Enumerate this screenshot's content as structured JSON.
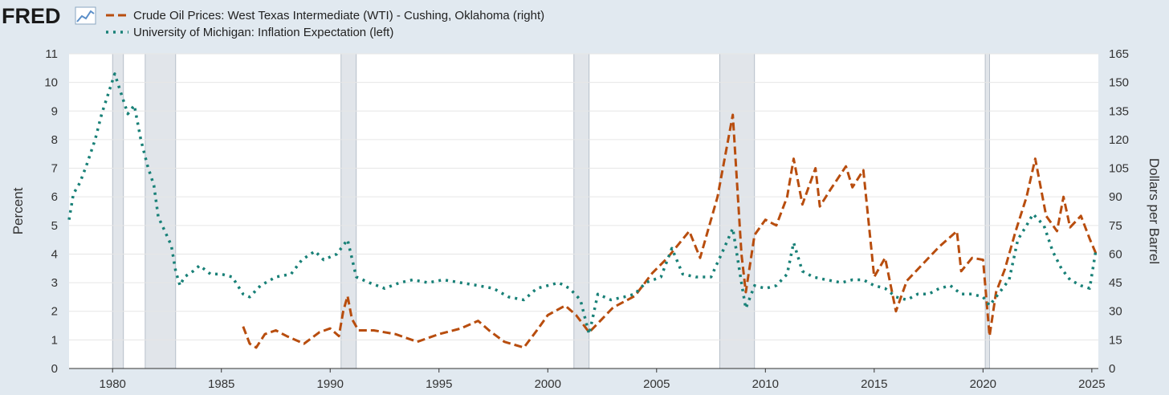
{
  "logo": {
    "text": "FRED"
  },
  "colors": {
    "background": "#e1e9f0",
    "plot_bg": "#ffffff",
    "grid": "#e6e6e6",
    "recession": "#e1e5ea",
    "oil": "#b84d0e",
    "inflation": "#188077",
    "text": "#333333"
  },
  "icons": [
    "fred-logo-chart-icon"
  ],
  "chart_data": {
    "type": "line",
    "x_range": [
      1978,
      2025.3
    ],
    "x_ticks": [
      1980,
      1985,
      1990,
      1995,
      2000,
      2005,
      2010,
      2015,
      2020,
      2025
    ],
    "left_axis": {
      "label": "Percent",
      "range": [
        0,
        11
      ],
      "ticks": [
        0,
        1,
        2,
        3,
        4,
        5,
        6,
        7,
        8,
        9,
        10,
        11
      ]
    },
    "right_axis": {
      "label": "Dollars per Barrel",
      "range": [
        0,
        165
      ],
      "ticks": [
        0,
        15,
        30,
        45,
        60,
        75,
        90,
        105,
        120,
        135,
        150,
        165
      ]
    },
    "grid": true,
    "legend": "top-left",
    "recessions": [
      [
        1980.0,
        1980.5
      ],
      [
        1981.5,
        1982.9
      ],
      [
        1990.5,
        1991.2
      ],
      [
        2001.2,
        2001.9
      ],
      [
        2007.9,
        2009.5
      ],
      [
        2020.1,
        2020.3
      ]
    ],
    "series": [
      {
        "name": "Crude Oil Prices: West Texas Intermediate (WTI) - Cushing, Oklahoma (right)",
        "axis": "right",
        "style": "dashed",
        "color": "#b84d0e",
        "points": [
          [
            1986.0,
            22
          ],
          [
            1986.3,
            13
          ],
          [
            1986.6,
            11
          ],
          [
            1987.0,
            18
          ],
          [
            1987.5,
            20
          ],
          [
            1988.0,
            17
          ],
          [
            1988.8,
            13
          ],
          [
            1989.5,
            19
          ],
          [
            1990.0,
            21
          ],
          [
            1990.4,
            17
          ],
          [
            1990.6,
            30
          ],
          [
            1990.8,
            38
          ],
          [
            1991.0,
            26
          ],
          [
            1991.3,
            20
          ],
          [
            1992.0,
            20
          ],
          [
            1993.0,
            18
          ],
          [
            1994.0,
            14
          ],
          [
            1995.0,
            18
          ],
          [
            1996.0,
            21
          ],
          [
            1996.8,
            25
          ],
          [
            1997.3,
            20
          ],
          [
            1998.0,
            14
          ],
          [
            1998.9,
            11
          ],
          [
            1999.5,
            20
          ],
          [
            2000.0,
            28
          ],
          [
            2000.8,
            33
          ],
          [
            2001.3,
            28
          ],
          [
            2001.9,
            19
          ],
          [
            2002.5,
            26
          ],
          [
            2003.0,
            32
          ],
          [
            2004.0,
            38
          ],
          [
            2004.8,
            50
          ],
          [
            2005.5,
            58
          ],
          [
            2006.5,
            72
          ],
          [
            2007.0,
            58
          ],
          [
            2007.8,
            90
          ],
          [
            2008.5,
            133
          ],
          [
            2008.9,
            60
          ],
          [
            2009.1,
            40
          ],
          [
            2009.5,
            70
          ],
          [
            2010.0,
            78
          ],
          [
            2010.5,
            75
          ],
          [
            2011.0,
            90
          ],
          [
            2011.3,
            110
          ],
          [
            2011.7,
            86
          ],
          [
            2012.3,
            105
          ],
          [
            2012.5,
            85
          ],
          [
            2013.0,
            94
          ],
          [
            2013.7,
            106
          ],
          [
            2014.0,
            95
          ],
          [
            2014.5,
            104
          ],
          [
            2015.0,
            48
          ],
          [
            2015.5,
            58
          ],
          [
            2016.0,
            30
          ],
          [
            2016.5,
            46
          ],
          [
            2017.0,
            52
          ],
          [
            2018.0,
            64
          ],
          [
            2018.8,
            72
          ],
          [
            2019.0,
            51
          ],
          [
            2019.5,
            58
          ],
          [
            2020.0,
            57
          ],
          [
            2020.3,
            17
          ],
          [
            2020.6,
            40
          ],
          [
            2021.0,
            52
          ],
          [
            2021.5,
            72
          ],
          [
            2022.0,
            90
          ],
          [
            2022.4,
            110
          ],
          [
            2022.9,
            80
          ],
          [
            2023.4,
            72
          ],
          [
            2023.7,
            90
          ],
          [
            2024.0,
            74
          ],
          [
            2024.5,
            80
          ],
          [
            2024.9,
            68
          ],
          [
            2025.2,
            60
          ]
        ]
      },
      {
        "name": "University of Michigan: Inflation Expectation (left)",
        "axis": "left",
        "style": "dotted",
        "color": "#188077",
        "points": [
          [
            1978.0,
            5.2
          ],
          [
            1978.2,
            6.1
          ],
          [
            1978.5,
            6.5
          ],
          [
            1978.8,
            7.1
          ],
          [
            1979.2,
            8.0
          ],
          [
            1979.5,
            8.9
          ],
          [
            1979.8,
            9.6
          ],
          [
            1980.1,
            10.3
          ],
          [
            1980.4,
            9.6
          ],
          [
            1980.7,
            8.9
          ],
          [
            1981.0,
            9.2
          ],
          [
            1981.3,
            8.0
          ],
          [
            1981.6,
            7.1
          ],
          [
            1981.9,
            6.4
          ],
          [
            1982.1,
            5.3
          ],
          [
            1982.4,
            4.8
          ],
          [
            1982.7,
            4.3
          ],
          [
            1982.9,
            3.4
          ],
          [
            1983.1,
            2.9
          ],
          [
            1983.3,
            3.2
          ],
          [
            1983.7,
            3.4
          ],
          [
            1984.0,
            3.6
          ],
          [
            1984.5,
            3.3
          ],
          [
            1985.0,
            3.3
          ],
          [
            1985.5,
            3.2
          ],
          [
            1986.0,
            2.6
          ],
          [
            1986.3,
            2.5
          ],
          [
            1986.8,
            2.9
          ],
          [
            1987.5,
            3.2
          ],
          [
            1988.2,
            3.3
          ],
          [
            1988.7,
            3.8
          ],
          [
            1989.3,
            4.1
          ],
          [
            1989.7,
            3.8
          ],
          [
            1990.3,
            4.0
          ],
          [
            1990.8,
            4.5
          ],
          [
            1991.2,
            3.2
          ],
          [
            1991.8,
            3.0
          ],
          [
            1992.5,
            2.8
          ],
          [
            1993.2,
            3.0
          ],
          [
            1993.8,
            3.1
          ],
          [
            1994.5,
            3.0
          ],
          [
            1995.2,
            3.1
          ],
          [
            1996.0,
            3.0
          ],
          [
            1996.8,
            2.9
          ],
          [
            1997.5,
            2.8
          ],
          [
            1998.2,
            2.5
          ],
          [
            1998.9,
            2.4
          ],
          [
            1999.5,
            2.8
          ],
          [
            2000.0,
            2.9
          ],
          [
            2000.5,
            3.0
          ],
          [
            2001.0,
            2.8
          ],
          [
            2001.5,
            2.4
          ],
          [
            2001.9,
            1.2
          ],
          [
            2002.3,
            2.6
          ],
          [
            2002.9,
            2.4
          ],
          [
            2003.5,
            2.5
          ],
          [
            2004.0,
            2.6
          ],
          [
            2004.5,
            3.0
          ],
          [
            2005.2,
            3.2
          ],
          [
            2005.7,
            4.2
          ],
          [
            2006.2,
            3.3
          ],
          [
            2006.8,
            3.2
          ],
          [
            2007.5,
            3.2
          ],
          [
            2008.1,
            4.2
          ],
          [
            2008.5,
            4.9
          ],
          [
            2008.9,
            3.0
          ],
          [
            2009.1,
            2.1
          ],
          [
            2009.5,
            2.9
          ],
          [
            2010.0,
            2.8
          ],
          [
            2010.5,
            2.9
          ],
          [
            2011.0,
            3.3
          ],
          [
            2011.3,
            4.4
          ],
          [
            2011.7,
            3.4
          ],
          [
            2012.2,
            3.2
          ],
          [
            2012.8,
            3.1
          ],
          [
            2013.5,
            3.0
          ],
          [
            2014.0,
            3.1
          ],
          [
            2014.5,
            3.1
          ],
          [
            2015.0,
            2.9
          ],
          [
            2015.5,
            2.8
          ],
          [
            2016.0,
            2.5
          ],
          [
            2016.5,
            2.4
          ],
          [
            2017.0,
            2.6
          ],
          [
            2017.5,
            2.6
          ],
          [
            2018.0,
            2.8
          ],
          [
            2018.5,
            2.9
          ],
          [
            2019.0,
            2.6
          ],
          [
            2019.5,
            2.6
          ],
          [
            2020.0,
            2.5
          ],
          [
            2020.3,
            2.2
          ],
          [
            2020.8,
            2.7
          ],
          [
            2021.2,
            3.1
          ],
          [
            2021.6,
            4.5
          ],
          [
            2022.0,
            5.0
          ],
          [
            2022.3,
            5.4
          ],
          [
            2022.8,
            5.0
          ],
          [
            2023.2,
            4.1
          ],
          [
            2023.6,
            3.5
          ],
          [
            2024.0,
            3.1
          ],
          [
            2024.5,
            2.9
          ],
          [
            2024.9,
            2.8
          ],
          [
            2025.2,
            4.2
          ]
        ]
      }
    ]
  }
}
